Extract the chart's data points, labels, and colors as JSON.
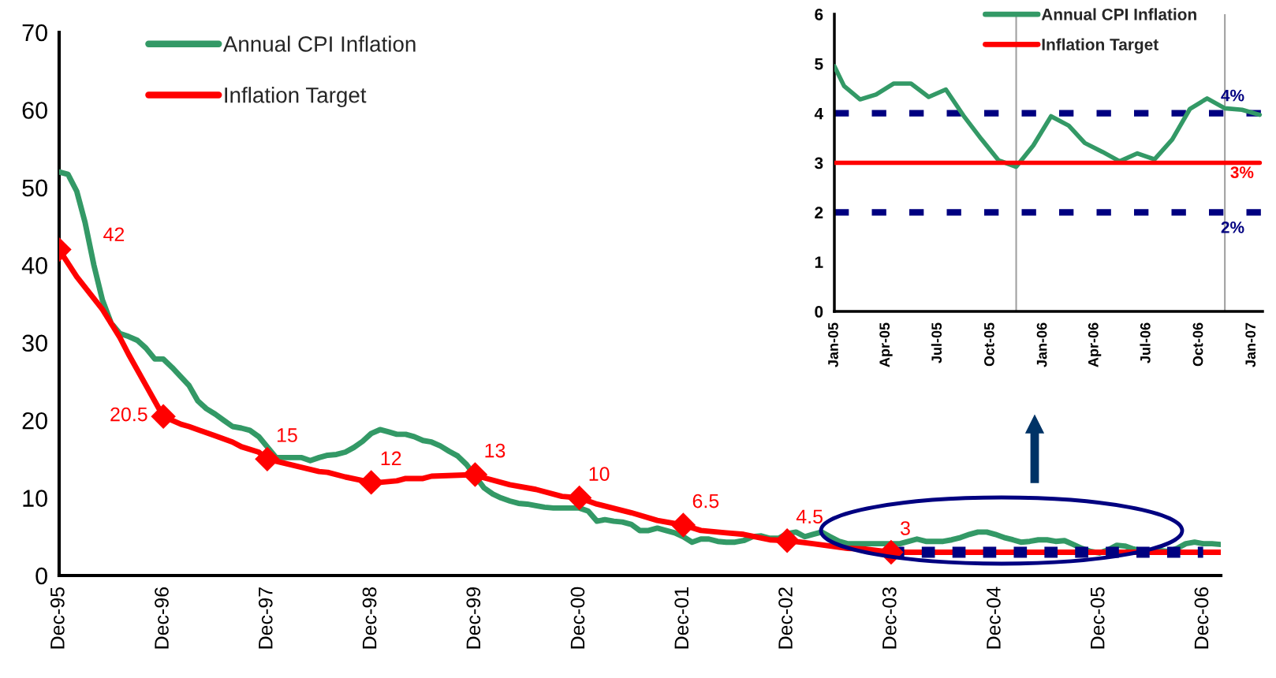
{
  "chart_data": [
    {
      "type": "line",
      "xlim": [
        "1995-12",
        "2007-02"
      ],
      "ylim": [
        0,
        70
      ],
      "yticks": [
        0,
        10,
        20,
        30,
        40,
        50,
        60,
        70
      ],
      "xticks": [
        {
          "value": "1995-12",
          "label": "Dec-95"
        },
        {
          "value": "1996-12",
          "label": "Dec-96"
        },
        {
          "value": "1997-12",
          "label": "Dec-97"
        },
        {
          "value": "1998-12",
          "label": "Dec-98"
        },
        {
          "value": "1999-12",
          "label": "Dec-99"
        },
        {
          "value": "2000-12",
          "label": "Dec-00"
        },
        {
          "value": "2001-12",
          "label": "Dec-01"
        },
        {
          "value": "2002-12",
          "label": "Dec-02"
        },
        {
          "value": "2003-12",
          "label": "Dec-03"
        },
        {
          "value": "2004-12",
          "label": "Dec-04"
        },
        {
          "value": "2005-12",
          "label": "Dec-05"
        },
        {
          "value": "2006-12",
          "label": "Dec-06"
        }
      ],
      "grid": false,
      "legend": "top left",
      "series": [
        {
          "name": "Annual CPI Inflation",
          "color": "#339966",
          "x": [
            "1995-12",
            "1996-01",
            "1996-02",
            "1996-03",
            "1996-04",
            "1996-05",
            "1996-06",
            "1996-07",
            "1996-08",
            "1996-09",
            "1996-10",
            "1996-11",
            "1996-12",
            "1997-01",
            "1997-02",
            "1997-03",
            "1997-04",
            "1997-05",
            "1997-06",
            "1997-07",
            "1997-08",
            "1997-09",
            "1997-10",
            "1997-11",
            "1998-01",
            "1998-02",
            "1998-03",
            "1998-04",
            "1998-05",
            "1998-06",
            "1998-07",
            "1998-08",
            "1998-09",
            "1998-10",
            "1998-11",
            "1998-12",
            "1999-01",
            "1999-02",
            "1999-03",
            "1999-04",
            "1999-05",
            "1999-06",
            "1999-07",
            "1999-08",
            "1999-09",
            "1999-10",
            "1999-11",
            "2000-01",
            "2000-02",
            "2000-03",
            "2000-04",
            "2000-05",
            "2000-06",
            "2000-07",
            "2000-08",
            "2000-09",
            "2000-10",
            "2000-11",
            "2000-12",
            "2001-01",
            "2001-02",
            "2001-03",
            "2001-04",
            "2001-05",
            "2001-06",
            "2001-07",
            "2001-08",
            "2001-09",
            "2001-10",
            "2001-11",
            "2001-12",
            "2002-01",
            "2002-02",
            "2002-03",
            "2002-04",
            "2002-05",
            "2002-06",
            "2002-07",
            "2002-08",
            "2002-09",
            "2002-10",
            "2002-11",
            "2002-12",
            "2003-01",
            "2003-02",
            "2003-03",
            "2003-04",
            "2003-05",
            "2003-06",
            "2003-07",
            "2003-08",
            "2003-09",
            "2003-10",
            "2003-11",
            "2003-12",
            "2004-01",
            "2004-02",
            "2004-03",
            "2004-04",
            "2004-05",
            "2004-06",
            "2004-07",
            "2004-08",
            "2004-09",
            "2004-10",
            "2004-11",
            "2004-12",
            "2005-01",
            "2005-02",
            "2005-03",
            "2005-04",
            "2005-05",
            "2005-06",
            "2005-07",
            "2005-08",
            "2005-09",
            "2005-10",
            "2005-11",
            "2005-12",
            "2006-01",
            "2006-02",
            "2006-03",
            "2006-04",
            "2006-05",
            "2006-06",
            "2006-07",
            "2006-08",
            "2006-09",
            "2006-10",
            "2006-11",
            "2006-12",
            "2007-01",
            "2007-02"
          ],
          "values": [
            52.0,
            51.7,
            49.5,
            45.5,
            40,
            35.5,
            32.5,
            31.2,
            30.8,
            30.3,
            29.3,
            27.9,
            27.9,
            26.8,
            25.6,
            24.5,
            22.5,
            21.5,
            20.8,
            20.0,
            19.2,
            19.0,
            18.7,
            17.9,
            15.2,
            15.2,
            15.2,
            15.2,
            14.8,
            15.2,
            15.5,
            15.6,
            15.9,
            16.5,
            17.3,
            18.3,
            18.8,
            18.5,
            18.2,
            18.2,
            17.9,
            17.4,
            17.2,
            16.7,
            16.0,
            15.4,
            14.3,
            11.3,
            10.5,
            10.0,
            9.6,
            9.3,
            9.2,
            9.0,
            8.8,
            8.7,
            8.7,
            8.7,
            8.7,
            8.3,
            7.0,
            7.2,
            7.0,
            6.9,
            6.6,
            5.8,
            5.8,
            6.1,
            5.8,
            5.5,
            5.0,
            4.3,
            4.7,
            4.7,
            4.4,
            4.3,
            4.3,
            4.5,
            5.0,
            5.1,
            4.8,
            4.8,
            5.4,
            5.6,
            5.0,
            5.3,
            5.6,
            5.0,
            4.4,
            4.1,
            4.1,
            4.1,
            4.1,
            4.1,
            4.1,
            4.1,
            4.4,
            4.7,
            4.4,
            4.4,
            4.4,
            4.6,
            4.9,
            5.3,
            5.6,
            5.6,
            5.3,
            4.9,
            4.6,
            4.3,
            4.4,
            4.6,
            4.6,
            4.4,
            4.5,
            4.0,
            3.5,
            3.1,
            2.9,
            3.3,
            3.9,
            3.8,
            3.4,
            3.2,
            3.1,
            3.2,
            3.1,
            3.5,
            4.1,
            4.3,
            4.1,
            4.1,
            4.0
          ]
        },
        {
          "name": "Inflation Target",
          "color": "#ff0000",
          "x": [
            "1995-12",
            "1996-02",
            "1996-05",
            "1996-07",
            "1996-08",
            "1996-10",
            "1996-12",
            "1997-02",
            "1997-03",
            "1997-06",
            "1997-08",
            "1997-09",
            "1997-11",
            "1997-12",
            "1998-03",
            "1998-06",
            "1998-07",
            "1998-09",
            "1998-12",
            "1999-01",
            "1999-03",
            "1999-04",
            "1999-06",
            "1999-07",
            "1999-12",
            "2000-01",
            "2000-04",
            "2000-07",
            "2000-10",
            "2000-12",
            "2001-02",
            "2001-06",
            "2001-09",
            "2001-12",
            "2002-02",
            "2002-05",
            "2002-07",
            "2002-10",
            "2002-12",
            "2003-03",
            "2003-07",
            "2003-09",
            "2003-12",
            "2007-02"
          ],
          "values": [
            42,
            38.5,
            34.3,
            30.7,
            28.5,
            24.5,
            20.5,
            19.5,
            19.2,
            18.0,
            17.2,
            16.6,
            15.9,
            15,
            14.2,
            13.4,
            13.3,
            12.7,
            12,
            12.0,
            12.2,
            12.5,
            12.5,
            12.8,
            13,
            12.6,
            11.7,
            11.1,
            10.2,
            10,
            9.2,
            8.1,
            7.1,
            6.5,
            5.8,
            5.5,
            5.3,
            4.6,
            4.5,
            4.1,
            3.5,
            3.4,
            3,
            3
          ]
        },
        {
          "color": "#000080",
          "line_style": "dashed",
          "x": [
            "2003-12",
            "2006-12"
          ],
          "values": [
            3,
            3
          ]
        },
        {
          "type": "scatter",
          "marker": "diamond",
          "color": "#ff0000",
          "x": [
            "1995-12",
            "1996-12",
            "1997-12",
            "1998-12",
            "1999-12",
            "2000-12",
            "2001-12",
            "2002-12",
            "2003-12"
          ],
          "values": [
            42,
            20.5,
            15,
            12,
            13,
            10,
            6.5,
            4.5,
            3
          ],
          "value_labels": [
            "42",
            "20.5",
            "15",
            "12",
            "13",
            "10",
            "6.5",
            "4.5",
            "3"
          ]
        }
      ]
    },
    {
      "type": "line",
      "xlim": [
        "2005-01-01",
        "2007-01-20"
      ],
      "ylim": [
        0,
        6
      ],
      "yticks": [
        0,
        1,
        2,
        3,
        4,
        5,
        6
      ],
      "xticks": [
        {
          "value": "2005-01-01",
          "label": "Jan-05"
        },
        {
          "value": "2005-04-01",
          "label": "Apr-05"
        },
        {
          "value": "2005-07-01",
          "label": "Jul-05"
        },
        {
          "value": "2005-10-01",
          "label": "Oct-05"
        },
        {
          "value": "2006-01-01",
          "label": "Jan-06"
        },
        {
          "value": "2006-04-01",
          "label": "Apr-06"
        },
        {
          "value": "2006-07-01",
          "label": "Jul-06"
        },
        {
          "value": "2006-10-01",
          "label": "Oct-06"
        },
        {
          "value": "2007-01-01",
          "label": "Jan-07"
        }
      ],
      "grid": false,
      "legend": "top",
      "series": [
        {
          "name": "Annual CPI Inflation",
          "color": "#339966",
          "x": [
            "2005-01-01",
            "2005-01-18",
            "2005-02-15",
            "2005-03-15",
            "2005-04-15",
            "2005-05-15",
            "2005-06-15",
            "2005-07-15",
            "2005-08-15",
            "2005-09-15",
            "2005-10-15",
            "2005-11-15",
            "2005-12-15",
            "2006-01-15",
            "2006-02-15",
            "2006-03-15",
            "2006-04-15",
            "2006-05-15",
            "2006-06-15",
            "2006-07-15",
            "2006-08-15",
            "2006-09-15",
            "2006-10-15",
            "2006-11-15",
            "2006-12-15",
            "2007-01-15"
          ],
          "values": [
            4.95,
            4.55,
            4.28,
            4.38,
            4.6,
            4.6,
            4.33,
            4.48,
            3.95,
            3.48,
            3.05,
            2.92,
            3.35,
            3.94,
            3.75,
            3.4,
            3.22,
            3.03,
            3.19,
            3.07,
            3.47,
            4.09,
            4.3,
            4.1,
            4.07,
            3.97
          ]
        },
        {
          "name": "Inflation Target",
          "color": "#ff0000",
          "x": [
            "2005-01-01",
            "2007-01-15"
          ],
          "values": [
            3,
            3
          ]
        }
      ],
      "ref_lines": [
        {
          "axis": "y",
          "value": 4,
          "label": "4%",
          "color": "#000080",
          "line_style": "dashed"
        },
        {
          "axis": "y",
          "value": 2,
          "label": "2%",
          "color": "#000080",
          "line_style": "dashed"
        },
        {
          "axis": "x",
          "value": "2005-11-15",
          "color": "#a0a0a0",
          "line_style": "solid"
        },
        {
          "axis": "x",
          "value": "2006-11-15",
          "color": "#a0a0a0",
          "line_style": "solid"
        }
      ],
      "annotations": [
        {
          "text": "3%",
          "x": "2006-12-15",
          "y": 3
        }
      ]
    }
  ]
}
